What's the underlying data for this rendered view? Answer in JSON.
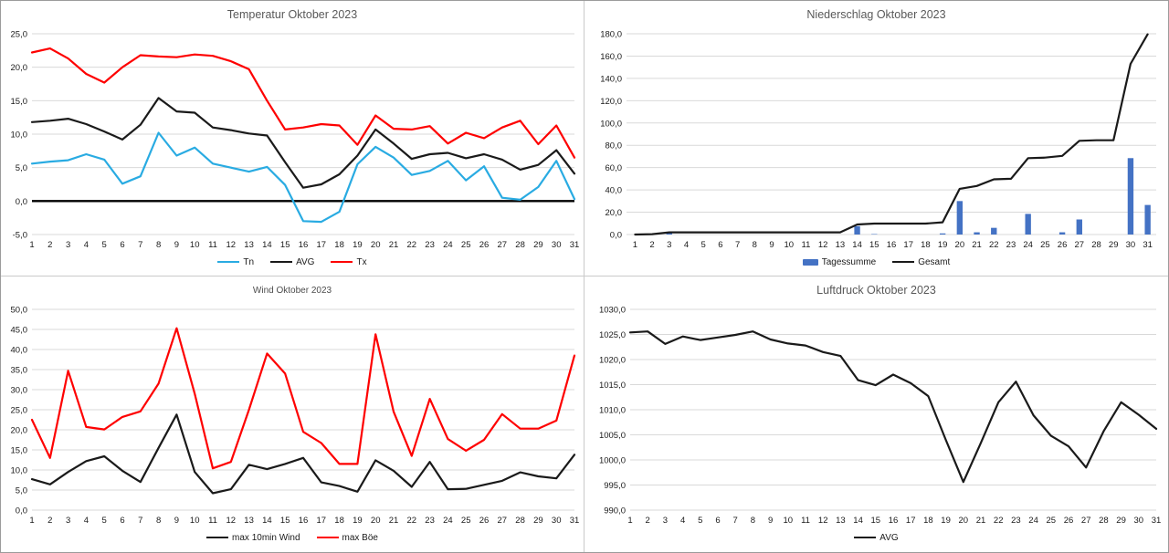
{
  "colors": {
    "red": "#fe0000",
    "black": "#1a1a1a",
    "cyan": "#29abe2",
    "bar_blue": "#4472c4",
    "grid": "#d9d9d9",
    "axis_text": "#1a1a1a",
    "title_gray": "#595959"
  },
  "days": [
    1,
    2,
    3,
    4,
    5,
    6,
    7,
    8,
    9,
    10,
    11,
    12,
    13,
    14,
    15,
    16,
    17,
    18,
    19,
    20,
    21,
    22,
    23,
    24,
    25,
    26,
    27,
    28,
    29,
    30,
    31
  ],
  "chart_data": [
    {
      "id": "temperature",
      "type": "line",
      "title": "Temperatur Oktober 2023",
      "ylim": [
        -5,
        25
      ],
      "ytick_step": 5,
      "zero_axis": true,
      "grid": true,
      "legend_position": "bottom",
      "x_mode": "edge",
      "series": [
        {
          "name": "Tn",
          "color": "cyan",
          "values": [
            5.6,
            5.9,
            6.1,
            7.0,
            6.2,
            2.6,
            3.7,
            10.2,
            6.8,
            8.0,
            5.6,
            5.0,
            4.4,
            5.1,
            2.4,
            -3.0,
            -3.1,
            -1.6,
            5.5,
            8.1,
            6.5,
            3.9,
            4.5,
            6.0,
            3.1,
            5.2,
            0.5,
            0.2,
            2.1,
            6.0,
            0.3
          ]
        },
        {
          "name": "AVG",
          "color": "black",
          "values": [
            11.8,
            12.0,
            12.3,
            11.5,
            10.4,
            9.2,
            11.4,
            15.4,
            13.4,
            13.2,
            11.0,
            10.6,
            10.1,
            9.8,
            5.8,
            2.0,
            2.5,
            4.0,
            6.8,
            10.7,
            8.6,
            6.3,
            7.0,
            7.2,
            6.4,
            7.0,
            6.2,
            4.7,
            5.4,
            7.6,
            4.1
          ]
        },
        {
          "name": "Tx",
          "color": "red",
          "values": [
            22.2,
            22.8,
            21.3,
            19.0,
            17.7,
            20.0,
            21.8,
            21.6,
            21.5,
            21.9,
            21.7,
            20.9,
            19.7,
            15.0,
            10.7,
            11.0,
            11.5,
            11.3,
            8.4,
            12.8,
            10.8,
            10.7,
            11.2,
            8.6,
            10.2,
            9.4,
            11.0,
            12.0,
            8.5,
            11.3,
            6.5
          ]
        }
      ]
    },
    {
      "id": "precipitation",
      "type": "bar+line",
      "title": "Niederschlag Oktober 2023",
      "ylim": [
        0,
        180
      ],
      "ytick_step": 20,
      "zero_axis": false,
      "grid": true,
      "legend_position": "bottom",
      "x_mode": "slot",
      "series": [
        {
          "name": "Tagessumme",
          "kind": "bar",
          "color": "bar_blue",
          "values": [
            0,
            0,
            2,
            0,
            0,
            0,
            0,
            0,
            0,
            0,
            0,
            0,
            0,
            7.5,
            0.4,
            0,
            0,
            0,
            1,
            30,
            2,
            6,
            0,
            18.5,
            0,
            2,
            13.5,
            0,
            0,
            68.5,
            26.5
          ]
        },
        {
          "name": "Gesamt",
          "kind": "line",
          "color": "black",
          "values": [
            0,
            0.3,
            2,
            2,
            2,
            2,
            2,
            2,
            2,
            2,
            2,
            2,
            2,
            9,
            9.8,
            9.8,
            9.8,
            9.8,
            11,
            41,
            43.5,
            49.5,
            50,
            68.5,
            69,
            70.5,
            84,
            84.5,
            84.5,
            153,
            179.5
          ]
        }
      ]
    },
    {
      "id": "wind",
      "type": "line",
      "title": "Wind Oktober 2023",
      "ylim": [
        0,
        50
      ],
      "ytick_step": 5,
      "zero_axis": false,
      "grid": true,
      "legend_position": "bottom",
      "x_mode": "edge",
      "series": [
        {
          "name": "max 10min Wind",
          "color": "black",
          "values": [
            7.7,
            6.4,
            9.5,
            12.2,
            13.4,
            9.8,
            7.0,
            15.5,
            23.8,
            9.5,
            4.2,
            5.2,
            11.3,
            10.2,
            11.5,
            13.0,
            6.9,
            6.0,
            4.6,
            12.4,
            9.8,
            5.8,
            12.0,
            5.2,
            5.3,
            6.3,
            7.3,
            9.4,
            8.4,
            7.9,
            13.8
          ]
        },
        {
          "name": "max Böe",
          "color": "red",
          "values": [
            22.5,
            13.0,
            34.7,
            20.7,
            20.1,
            23.2,
            24.6,
            31.5,
            45.3,
            29.0,
            10.4,
            12.0,
            25.0,
            39.0,
            34.0,
            19.5,
            16.7,
            11.5,
            11.5,
            43.8,
            24.5,
            13.5,
            27.7,
            17.7,
            14.8,
            17.5,
            23.9,
            20.3,
            20.3,
            22.3,
            38.5
          ]
        }
      ]
    },
    {
      "id": "pressure",
      "type": "line",
      "title": "Luftdruck Oktober 2023",
      "ylim": [
        990,
        1030
      ],
      "ytick_step": 5,
      "zero_axis": false,
      "grid": true,
      "legend_position": "bottom",
      "x_mode": "edge",
      "series": [
        {
          "name": "AVG",
          "color": "black",
          "values": [
            1025.4,
            1025.6,
            1023.1,
            1024.6,
            1023.9,
            1024.4,
            1024.9,
            1025.6,
            1024.0,
            1023.2,
            1022.8,
            1021.5,
            1020.7,
            1015.9,
            1014.9,
            1017.0,
            1015.3,
            1012.7,
            1004.0,
            995.6,
            1003.4,
            1011.5,
            1015.6,
            1008.9,
            1004.8,
            1002.7,
            998.5,
            1005.7,
            1011.5,
            1009.0,
            1006.2
          ]
        }
      ]
    }
  ]
}
